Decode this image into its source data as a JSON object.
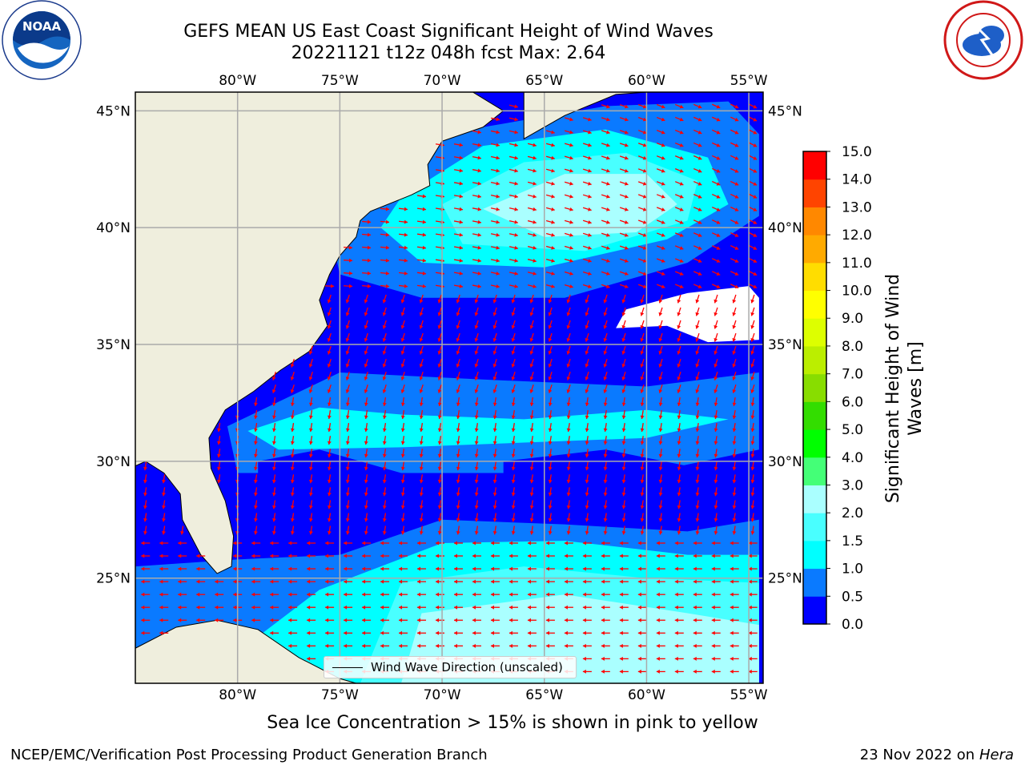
{
  "header": {
    "title_line1": "GEFS MEAN US East Coast Significant Height of Wind Waves",
    "title_line2": "20221121 t12z 048h fcst   Max: 2.64"
  },
  "logos": {
    "left": "noaa-logo",
    "right": "nws-logo"
  },
  "map": {
    "lon_ticks": [
      "80°W",
      "75°W",
      "70°W",
      "65°W",
      "60°W",
      "55°W"
    ],
    "lat_ticks": [
      "45°N",
      "40°N",
      "35°N",
      "30°N",
      "25°N"
    ],
    "lat_range": [
      20.5,
      45.8
    ],
    "lon_range": [
      -85.0,
      -54.3
    ],
    "land_color": "#efeedd",
    "arrow_color": "#ff0000",
    "legend_label": "Wind Wave Direction (unscaled)"
  },
  "colorbar": {
    "label": "Significant Height of Wind Waves [m]",
    "ticks": [
      "15.0",
      "14.0",
      "13.0",
      "12.0",
      "11.0",
      "10.0",
      "9.0",
      "8.0",
      "7.0",
      "6.0",
      "5.0",
      "4.0",
      "3.0",
      "2.0",
      "1.5",
      "1.0",
      "0.5",
      "0.0"
    ],
    "levels": [
      0.0,
      0.5,
      1.0,
      1.5,
      2.0,
      3.0,
      4.0,
      5.0,
      6.0,
      7.0,
      8.0,
      9.0,
      10.0,
      11.0,
      12.0,
      13.0,
      14.0,
      15.0
    ],
    "colors": [
      "#0000ff",
      "#0a7aff",
      "#00ffff",
      "#49ffff",
      "#aaffff",
      "#44ff77",
      "#00ff00",
      "#33dd00",
      "#88dd00",
      "#bbee00",
      "#ddff00",
      "#ffff00",
      "#ffdd00",
      "#ffaa00",
      "#ff8800",
      "#ff4400",
      "#ff0000"
    ]
  },
  "footer": {
    "note": "Sea Ice Concentration > 15% is shown in pink to yellow",
    "left": "NCEP/EMC/Verification Post Processing Product Generation Branch",
    "right_date": "23 Nov 2022 on",
    "right_host": "Hera"
  }
}
